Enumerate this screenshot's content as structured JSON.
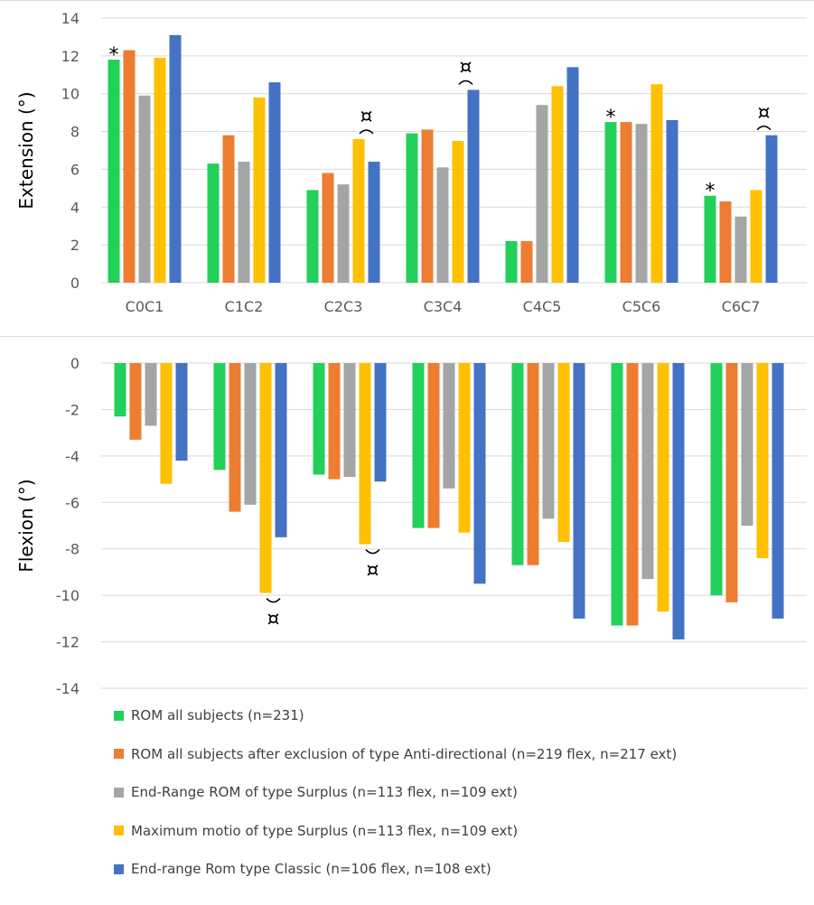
{
  "colors": [
    "#22d05a",
    "#ed7d31",
    "#a5a5a5",
    "#ffc000",
    "#4472c4"
  ],
  "chart_data": [
    {
      "type": "bar",
      "ylabel": "Extension (°)",
      "ylim": [
        0,
        14
      ],
      "yticks": [
        "0",
        "2",
        "4",
        "6",
        "8",
        "10",
        "12",
        "14"
      ],
      "categories": [
        "C0C1",
        "C1C2",
        "C2C3",
        "C3C4",
        "C4C5",
        "C5C6",
        "C6C7"
      ],
      "grid": true,
      "series": [
        {
          "name": "ROM all subjects (n=231)",
          "values": [
            11.8,
            6.3,
            4.9,
            7.9,
            2.2,
            8.5,
            4.6
          ]
        },
        {
          "name": "ROM all subjects after exclusion of type Anti-directional (n=219 flex, n=217 ext)",
          "values": [
            12.3,
            7.8,
            5.8,
            8.1,
            2.2,
            8.5,
            4.3
          ]
        },
        {
          "name": "End-Range ROM of type Surplus (n=113 flex, n=109 ext)",
          "values": [
            9.9,
            6.4,
            5.2,
            6.1,
            9.4,
            8.4,
            3.5
          ]
        },
        {
          "name": "Maximum motio of type Surplus (n=113 flex, n=109 ext)",
          "values": [
            11.9,
            9.8,
            7.6,
            7.5,
            10.4,
            10.5,
            4.9
          ]
        },
        {
          "name": "End-range Rom type Classic (n=106 flex, n=108 ext)",
          "values": [
            13.1,
            10.6,
            6.4,
            10.2,
            11.4,
            8.6,
            7.8
          ]
        }
      ],
      "annotations": [
        {
          "text": "*",
          "category": 0,
          "series": 0
        },
        {
          "text": "¤",
          "category": 2,
          "series": 3,
          "bracket": [
            3,
            4
          ]
        },
        {
          "text": "¤",
          "category": 3,
          "series": 4,
          "bracket": [
            3,
            4
          ]
        },
        {
          "text": "*",
          "category": 5,
          "series": 0
        },
        {
          "text": "*",
          "category": 6,
          "series": 0
        },
        {
          "text": "¤",
          "category": 6,
          "series": 4,
          "bracket": [
            3,
            4
          ]
        }
      ]
    },
    {
      "type": "bar",
      "ylabel": "Flexion (°)",
      "ylim": [
        -14,
        0
      ],
      "yticks": [
        "0",
        "-2",
        "-4",
        "-6",
        "-8",
        "-10",
        "-12",
        "-14"
      ],
      "categories": [
        "C0C1",
        "C1C2",
        "C2C3",
        "C3C4",
        "C4C5",
        "C5C6",
        "C6C7"
      ],
      "grid": true,
      "series": [
        {
          "name": "ROM all subjects (n=231)",
          "values": [
            -2.3,
            -4.6,
            -4.8,
            -7.1,
            -8.7,
            -11.3,
            -10.0
          ]
        },
        {
          "name": "ROM all subjects after exclusion of type Anti-directional (n=219 flex, n=217 ext)",
          "values": [
            -3.3,
            -6.4,
            -5.0,
            -7.1,
            -8.7,
            -11.3,
            -10.3
          ]
        },
        {
          "name": "End-Range ROM of type Surplus (n=113 flex, n=109 ext)",
          "values": [
            -2.7,
            -6.1,
            -4.9,
            -5.4,
            -6.7,
            -9.3,
            -7.0
          ]
        },
        {
          "name": "Maximum motio of type Surplus (n=113 flex, n=109 ext)",
          "values": [
            -5.2,
            -9.9,
            -7.8,
            -7.3,
            -7.7,
            -10.7,
            -8.4
          ]
        },
        {
          "name": "End-range Rom type Classic (n=106 flex, n=108 ext)",
          "values": [
            -4.2,
            -7.5,
            -5.1,
            -9.5,
            -11.0,
            -11.9,
            -11.0
          ]
        }
      ],
      "annotations": [
        {
          "text": "¤",
          "category": 1,
          "series": 4,
          "bracket": [
            3,
            4
          ]
        },
        {
          "text": "¤",
          "category": 2,
          "series": 3,
          "bracket": [
            3,
            4
          ]
        }
      ]
    }
  ],
  "legend": [
    "ROM all subjects (n=231)",
    "ROM all subjects after exclusion of type Anti-directional (n=219 flex, n=217 ext)",
    "End-Range ROM of type Surplus (n=113 flex, n=109 ext)",
    "Maximum motio of type Surplus (n=113 flex, n=109 ext)",
    "End-range Rom type Classic (n=106 flex, n=108 ext)"
  ]
}
